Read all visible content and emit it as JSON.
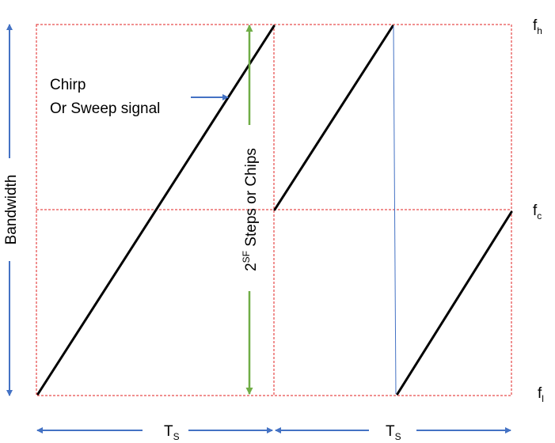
{
  "diagram": {
    "freq_labels": {
      "high": {
        "base": "f",
        "sub": "h"
      },
      "center": {
        "base": "f",
        "sub": "c"
      },
      "low": {
        "base": "f",
        "sub": "l"
      }
    },
    "bandwidth_label": "Bandwidth",
    "chirp_label": {
      "line1": "Chirp",
      "line2": "Or Sweep signal"
    },
    "steps_label": {
      "base": "2",
      "superscript": "SF",
      "rest": " Steps or Chips"
    },
    "symbol_period_label": {
      "base": "T",
      "sub": "S"
    },
    "colors": {
      "grid": "#e02020",
      "chirp": "#000000",
      "arrow": "#4472c4",
      "steps_arrow": "#70ad47",
      "wrap_line": "#4472c4"
    }
  }
}
